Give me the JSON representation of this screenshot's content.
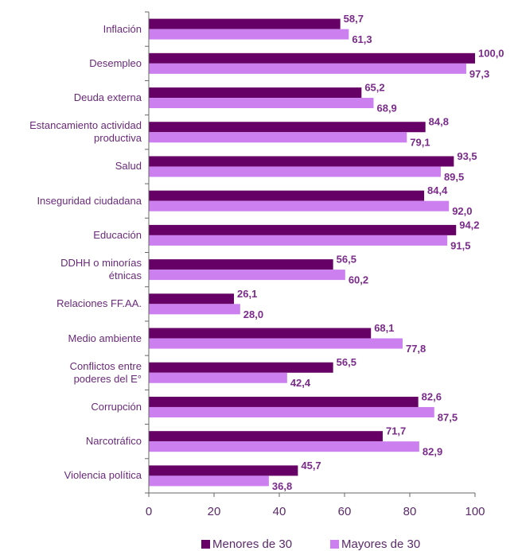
{
  "chart_data": {
    "type": "bar",
    "orientation": "horizontal",
    "categories": [
      "Inflación",
      "Desempleo",
      "Deuda externa",
      "Estancamiento actividad productiva",
      "Salud",
      "Inseguridad ciudadana",
      "Educación",
      "DDHH o minorías étnicas",
      "Relaciones FF.AA.",
      "Medio ambiente",
      "Conflictos entre poderes del E°",
      "Corrupción",
      "Narcotráfico",
      "Violencia política"
    ],
    "series": [
      {
        "name": "Menores de 30",
        "color": "#660066",
        "values": [
          58.7,
          100.0,
          65.2,
          84.8,
          93.5,
          84.4,
          94.2,
          56.5,
          26.1,
          68.1,
          56.5,
          82.6,
          71.7,
          45.7
        ],
        "value_labels": [
          "58,7",
          "100,0",
          "65,2",
          "84,8",
          "93,5",
          "84,4",
          "94,2",
          "56,5",
          "26,1",
          "68,1",
          "56,5",
          "82,6",
          "71,7",
          "45,7"
        ]
      },
      {
        "name": "Mayores de 30",
        "color": "#cc80f0",
        "values": [
          61.3,
          97.3,
          68.9,
          79.1,
          89.5,
          92.0,
          91.5,
          60.2,
          28.0,
          77.8,
          42.4,
          87.5,
          82.9,
          36.8
        ],
        "value_labels": [
          "61,3",
          "97,3",
          "68,9",
          "79,1",
          "89,5",
          "92,0",
          "91,5",
          "60,2",
          "28,0",
          "77,8",
          "42,4",
          "87,5",
          "82,9",
          "36,8"
        ]
      }
    ],
    "xlim": [
      0,
      100
    ],
    "xticks": [
      0,
      20,
      40,
      60,
      80,
      100
    ],
    "legend": "bottom"
  }
}
